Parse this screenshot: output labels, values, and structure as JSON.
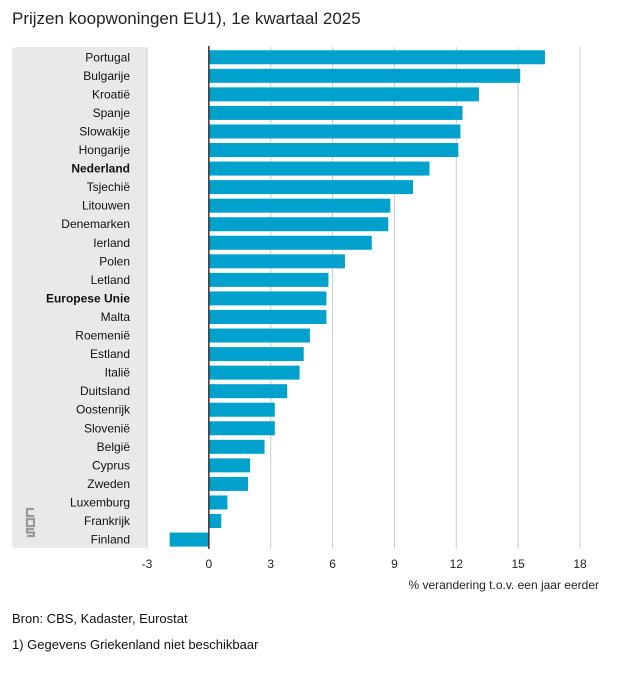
{
  "title": "Prijzen koopwoningen EU1), 1e kwartaal 2025",
  "source": "Bron: CBS, Kadaster, Eurostat",
  "footnote": "1) Gegevens Griekenland niet beschikbaar",
  "logo": "cbs",
  "colors": {
    "bar": "#00a1cd",
    "panel": "#e9e9e9",
    "grid": "#cccccc",
    "axis": "#333333"
  },
  "chart_data": {
    "type": "bar",
    "orientation": "horizontal",
    "xlabel": "% verandering t.o.v. een jaar eerder",
    "xlim": [
      -3,
      18
    ],
    "xticks": [
      -3,
      0,
      3,
      6,
      9,
      12,
      15,
      18
    ],
    "grid": true,
    "categories": [
      "Portugal",
      "Bulgarije",
      "Kroatië",
      "Spanje",
      "Slowakije",
      "Hongarije",
      "Nederland",
      "Tsjechië",
      "Litouwen",
      "Denemarken",
      "Ierland",
      "Polen",
      "Letland",
      "Europese Unie",
      "Malta",
      "Roemenië",
      "Estland",
      "Italië",
      "Duitsland",
      "Oostenrijk",
      "Slovenië",
      "België",
      "Cyprus",
      "Zweden",
      "Luxemburg",
      "Frankrijk",
      "Finland"
    ],
    "bold_categories": [
      "Nederland",
      "Europese Unie"
    ],
    "values": [
      16.3,
      15.1,
      13.1,
      12.3,
      12.2,
      12.1,
      10.7,
      9.9,
      8.8,
      8.7,
      7.9,
      6.6,
      5.8,
      5.7,
      5.7,
      4.9,
      4.6,
      4.4,
      3.8,
      3.2,
      3.2,
      2.7,
      2.0,
      1.9,
      0.9,
      0.6,
      -1.9
    ]
  }
}
